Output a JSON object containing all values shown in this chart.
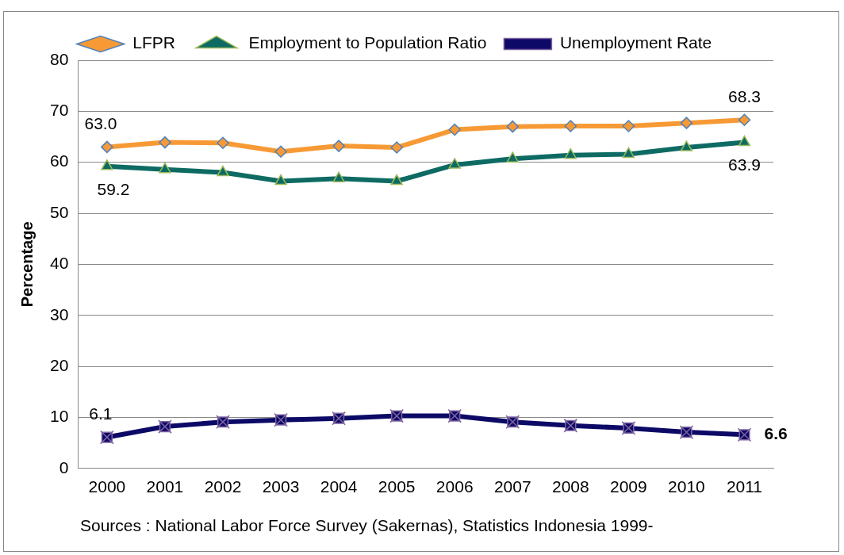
{
  "chart_data": {
    "type": "line",
    "ylabel": "Percentage",
    "categories": [
      "2000",
      "2001",
      "2002",
      "2003",
      "2004",
      "2005",
      "2006",
      "2007",
      "2008",
      "2009",
      "2010",
      "2011"
    ],
    "series": [
      {
        "name": "LFPR",
        "color": "#f79a35",
        "marker": "diamond",
        "values": [
          63.0,
          63.9,
          63.8,
          62.1,
          63.2,
          62.9,
          66.4,
          67.0,
          67.1,
          67.1,
          67.7,
          68.3
        ],
        "value_labels": [
          "63.0",
          null,
          null,
          null,
          null,
          null,
          null,
          null,
          null,
          null,
          null,
          "68.3"
        ]
      },
      {
        "name": "Employment to Population Ratio",
        "color": "#0e6b63",
        "marker": "triangle",
        "values": [
          59.2,
          58.6,
          58.0,
          56.3,
          56.8,
          56.3,
          59.5,
          60.7,
          61.4,
          61.6,
          62.9,
          63.9
        ],
        "value_labels": [
          "59.2",
          null,
          null,
          null,
          null,
          null,
          null,
          null,
          null,
          null,
          null,
          "63.9"
        ]
      },
      {
        "name": "Unemployment Rate",
        "color": "#0c0a66",
        "marker": "square",
        "values": [
          6.1,
          8.2,
          9.1,
          9.5,
          9.8,
          10.3,
          10.3,
          9.1,
          8.4,
          7.9,
          7.1,
          6.6
        ],
        "value_labels": [
          "6.1",
          null,
          null,
          null,
          null,
          null,
          null,
          null,
          null,
          null,
          null,
          "6.6"
        ]
      }
    ],
    "ylim": [
      0,
      80
    ],
    "yticks": [
      0,
      10,
      20,
      30,
      40,
      50,
      60,
      70,
      80
    ],
    "grid": "y",
    "legend": "top",
    "annotations": [
      "Sources : National Labor Force Survey (Sakernas), Statistics Indonesia 1999-"
    ]
  }
}
